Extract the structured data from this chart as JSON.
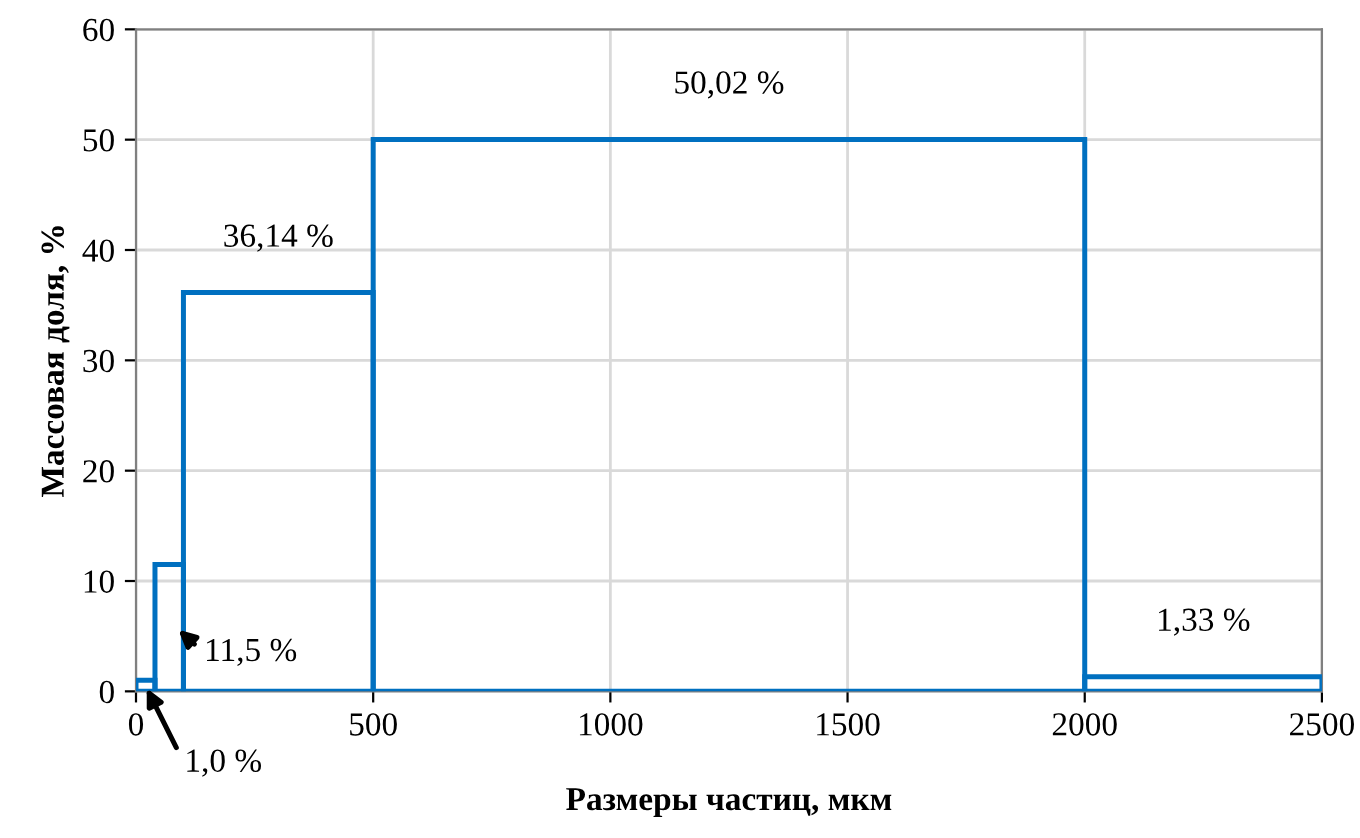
{
  "chart_data": {
    "type": "histogram",
    "bins": [
      0,
      40,
      100,
      500,
      2000,
      2500
    ],
    "values": [
      1.0,
      11.5,
      36.14,
      50.02,
      1.33
    ],
    "value_labels": [
      "1,0 %",
      "11,5 %",
      "36,14 %",
      "50,02 %",
      "1,33 %"
    ],
    "color": "#0070c0",
    "xlabel": "Размеры частиц, мкм",
    "ylabel": "Массовая доля, %",
    "xlim": [
      0,
      2500
    ],
    "xticks": [
      0,
      500,
      1000,
      1500,
      2000,
      2500
    ],
    "ylim": [
      0,
      60
    ],
    "yticks": [
      0,
      10,
      20,
      30,
      40,
      50,
      60
    ],
    "grid": true,
    "legend": false
  }
}
